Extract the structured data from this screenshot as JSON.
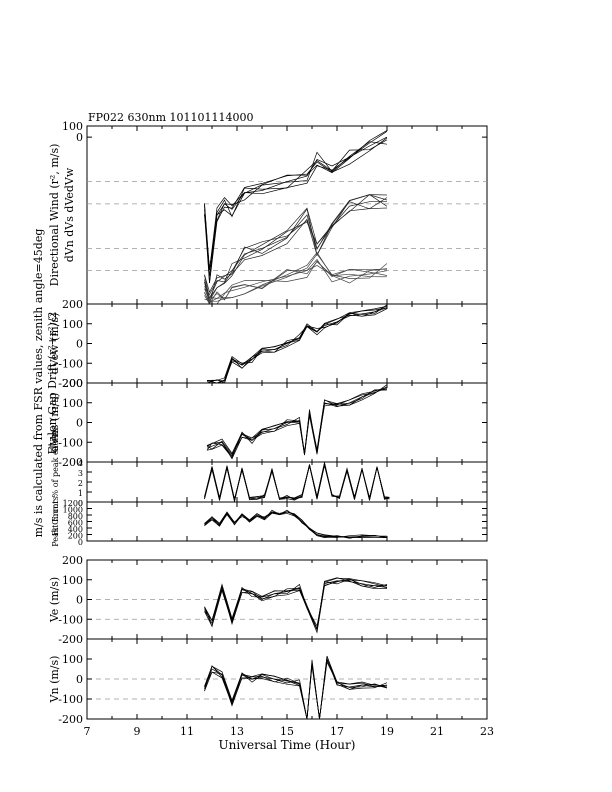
{
  "page": {
    "header": "FP022 630nm  101101114000"
  },
  "chart_data": [
    {
      "type": "line",
      "id": "dir-wind",
      "ylabel": "Directional Wind (r², m/s)",
      "ylabel2": "dVn   dVs      dVedVw",
      "ylim": [
        -1500,
        100
      ],
      "yticks": [
        {
          "v": 100,
          "t": "100"
        },
        {
          "v": 0,
          "t": "0"
        }
      ],
      "guides": [
        -400,
        -600,
        -1000,
        -1200
      ],
      "xlim": [
        7,
        23
      ],
      "series": [
        {
          "x": [
            11.7,
            11.9,
            12.2,
            12.5,
            12.8,
            13.3,
            14.0,
            15.0,
            15.8,
            16.2,
            16.8,
            17.5,
            18.3,
            19.0
          ],
          "values": [
            -650,
            -1250,
            -700,
            -600,
            -650,
            -500,
            -480,
            -400,
            -350,
            -200,
            -260,
            -180,
            -80,
            0
          ]
        },
        {
          "x": [
            11.7,
            11.9,
            12.2,
            12.5,
            12.8,
            13.3,
            14.0,
            15.0,
            15.8,
            16.2,
            16.8,
            17.5,
            18.3,
            19.0
          ],
          "values": [
            -1300,
            -1450,
            -1300,
            -1250,
            -1200,
            -1050,
            -1000,
            -900,
            -700,
            -1000,
            -800,
            -620,
            -580,
            -580
          ]
        },
        {
          "x": [
            11.7,
            11.9,
            12.2,
            12.5,
            12.8,
            13.3,
            14.0,
            15.0,
            15.8,
            16.2,
            16.8,
            17.5,
            18.3,
            19.0
          ],
          "values": [
            -1400,
            -1480,
            -1450,
            -1400,
            -1380,
            -1350,
            -1300,
            -1250,
            -1200,
            -1100,
            -1300,
            -1250,
            -1230,
            -1200
          ]
        }
      ]
    },
    {
      "type": "line",
      "id": "dvew",
      "ylabel": "dVew (m/s)",
      "ylim": [
        -200,
        200
      ],
      "yticks": [
        {
          "v": 200,
          "t": "200"
        },
        {
          "v": 100,
          "t": "100"
        },
        {
          "v": 0,
          "t": "0"
        },
        {
          "v": -100,
          "t": "-100"
        },
        {
          "v": -200,
          "t": "-200"
        }
      ],
      "guides": [],
      "xlim": [
        7,
        23
      ],
      "series": [
        {
          "x": [
            11.8,
            12.2,
            12.5,
            12.8,
            13.2,
            13.6,
            14.0,
            14.5,
            15.0,
            15.5,
            15.8,
            16.2,
            16.5,
            17.0,
            17.5,
            18.0,
            18.5,
            19.0
          ],
          "values": [
            -200,
            -200,
            -190,
            -80,
            -110,
            -80,
            -40,
            -30,
            0,
            30,
            100,
            60,
            90,
            110,
            140,
            150,
            160,
            180
          ]
        }
      ]
    },
    {
      "type": "line",
      "id": "dvns",
      "ylabel": "dVns (m/s)",
      "ylim": [
        -200,
        200
      ],
      "yticks": [
        {
          "v": 200,
          "t": "200"
        },
        {
          "v": 100,
          "t": "100"
        },
        {
          "v": 0,
          "t": "0"
        },
        {
          "v": -100,
          "t": "-100"
        },
        {
          "v": -200,
          "t": "-200"
        }
      ],
      "guides": [],
      "xlim": [
        7,
        23
      ],
      "series": [
        {
          "x": [
            11.8,
            12.0,
            12.4,
            12.8,
            13.2,
            13.6,
            14.0,
            14.5,
            15.0,
            15.5,
            15.7,
            15.9,
            16.2,
            16.5,
            17.0,
            17.5,
            18.0,
            18.5,
            19.0
          ],
          "values": [
            -130,
            -120,
            -100,
            -170,
            -60,
            -90,
            -50,
            -30,
            0,
            10,
            -150,
            50,
            -150,
            100,
            80,
            100,
            130,
            150,
            180
          ]
        }
      ]
    },
    {
      "type": "line",
      "id": "fit-error",
      "ylabel": "Fit Error % of peak counts",
      "ylim": [
        0,
        4
      ],
      "yticks": [
        {
          "v": 4,
          "t": "4"
        },
        {
          "v": 3,
          "t": "3"
        },
        {
          "v": 2,
          "t": "2"
        },
        {
          "v": 1,
          "t": "1"
        },
        {
          "v": 0,
          "t": "0"
        }
      ],
      "guides": [],
      "xlim": [
        7,
        23
      ],
      "series": [
        {
          "x": [
            11.7,
            12.0,
            12.3,
            12.6,
            12.9,
            13.2,
            13.5,
            13.8,
            14.1,
            14.4,
            14.7,
            15.0,
            15.3,
            15.6,
            15.9,
            16.2,
            16.5,
            16.8,
            17.1,
            17.4,
            17.7,
            18.0,
            18.3,
            18.6,
            18.9,
            19.1
          ],
          "values": [
            0.4,
            3.4,
            0.3,
            3.5,
            0.2,
            3.3,
            0.3,
            0.4,
            0.6,
            3.2,
            0.4,
            0.5,
            0.3,
            0.6,
            3.6,
            0.4,
            3.8,
            0.6,
            0.5,
            3.2,
            0.4,
            3.4,
            0.3,
            3.5,
            0.4,
            0.3
          ]
        }
      ]
    },
    {
      "type": "line",
      "id": "peak-counts",
      "ylabel": "Peak Counts",
      "ylim": [
        0,
        1200
      ],
      "yticks": [
        {
          "v": 1200,
          "t": "1200"
        },
        {
          "v": 1000,
          "t": "1000"
        },
        {
          "v": 800,
          "t": "800"
        },
        {
          "v": 600,
          "t": "600"
        },
        {
          "v": 400,
          "t": "400"
        },
        {
          "v": 200,
          "t": "200"
        },
        {
          "v": 0,
          "t": "0"
        }
      ],
      "guides": [],
      "xlim": [
        7,
        23
      ],
      "series": [
        {
          "x": [
            11.7,
            12.0,
            12.3,
            12.6,
            12.9,
            13.2,
            13.5,
            13.8,
            14.1,
            14.4,
            14.7,
            15.0,
            15.3,
            15.6,
            15.9,
            16.2,
            16.5,
            17.0,
            17.5,
            18.0,
            18.5,
            19.0
          ],
          "values": [
            500,
            700,
            500,
            850,
            550,
            800,
            600,
            800,
            700,
            900,
            850,
            900,
            800,
            600,
            350,
            200,
            150,
            120,
            130,
            140,
            150,
            150
          ]
        }
      ]
    },
    {
      "type": "line",
      "id": "ve",
      "ylabel": "Ve (m/s)",
      "ylim": [
        -200,
        200
      ],
      "yticks": [
        {
          "v": 200,
          "t": "200"
        },
        {
          "v": 100,
          "t": "100"
        },
        {
          "v": 0,
          "t": "0"
        },
        {
          "v": -100,
          "t": "-100"
        },
        {
          "v": -200,
          "t": "-200"
        }
      ],
      "guides": [
        0,
        -100
      ],
      "xlim": [
        7,
        23
      ],
      "series": [
        {
          "x": [
            11.7,
            12.0,
            12.4,
            12.8,
            13.2,
            13.6,
            14.0,
            14.5,
            15.0,
            15.5,
            15.8,
            16.2,
            16.5,
            17.0,
            17.5,
            18.0,
            18.5,
            19.0
          ],
          "values": [
            -50,
            -120,
            60,
            -110,
            50,
            30,
            0,
            30,
            40,
            60,
            -30,
            -150,
            80,
            95,
            90,
            80,
            70,
            60
          ]
        }
      ]
    },
    {
      "type": "line",
      "id": "vn",
      "ylabel": "Vn (m/s)",
      "ylim": [
        -200,
        200
      ],
      "yticks": [
        {
          "v": 100,
          "t": "100"
        },
        {
          "v": 0,
          "t": "0"
        },
        {
          "v": -100,
          "t": "-100"
        },
        {
          "v": -200,
          "t": "-200"
        }
      ],
      "guides": [
        0,
        -100
      ],
      "xlim": [
        7,
        23
      ],
      "xticks": [
        7,
        9,
        11,
        13,
        15,
        17,
        19,
        21,
        23
      ],
      "xlabel": "Universal Time (Hour)",
      "series": [
        {
          "x": [
            11.7,
            12.0,
            12.4,
            12.8,
            13.2,
            13.6,
            14.0,
            14.5,
            15.0,
            15.5,
            15.8,
            16.0,
            16.3,
            16.6,
            17.0,
            17.5,
            18.0,
            18.5,
            19.0
          ],
          "values": [
            -50,
            50,
            20,
            -120,
            20,
            0,
            10,
            0,
            -10,
            -20,
            -200,
            80,
            -210,
            100,
            -30,
            -40,
            -30,
            -40,
            -30
          ]
        }
      ]
    }
  ],
  "side_label": "m/s is calculated from FSR values, zenith angle=45deg",
  "side_label2": "Etalon Gap Drift (r²+r²)/2"
}
